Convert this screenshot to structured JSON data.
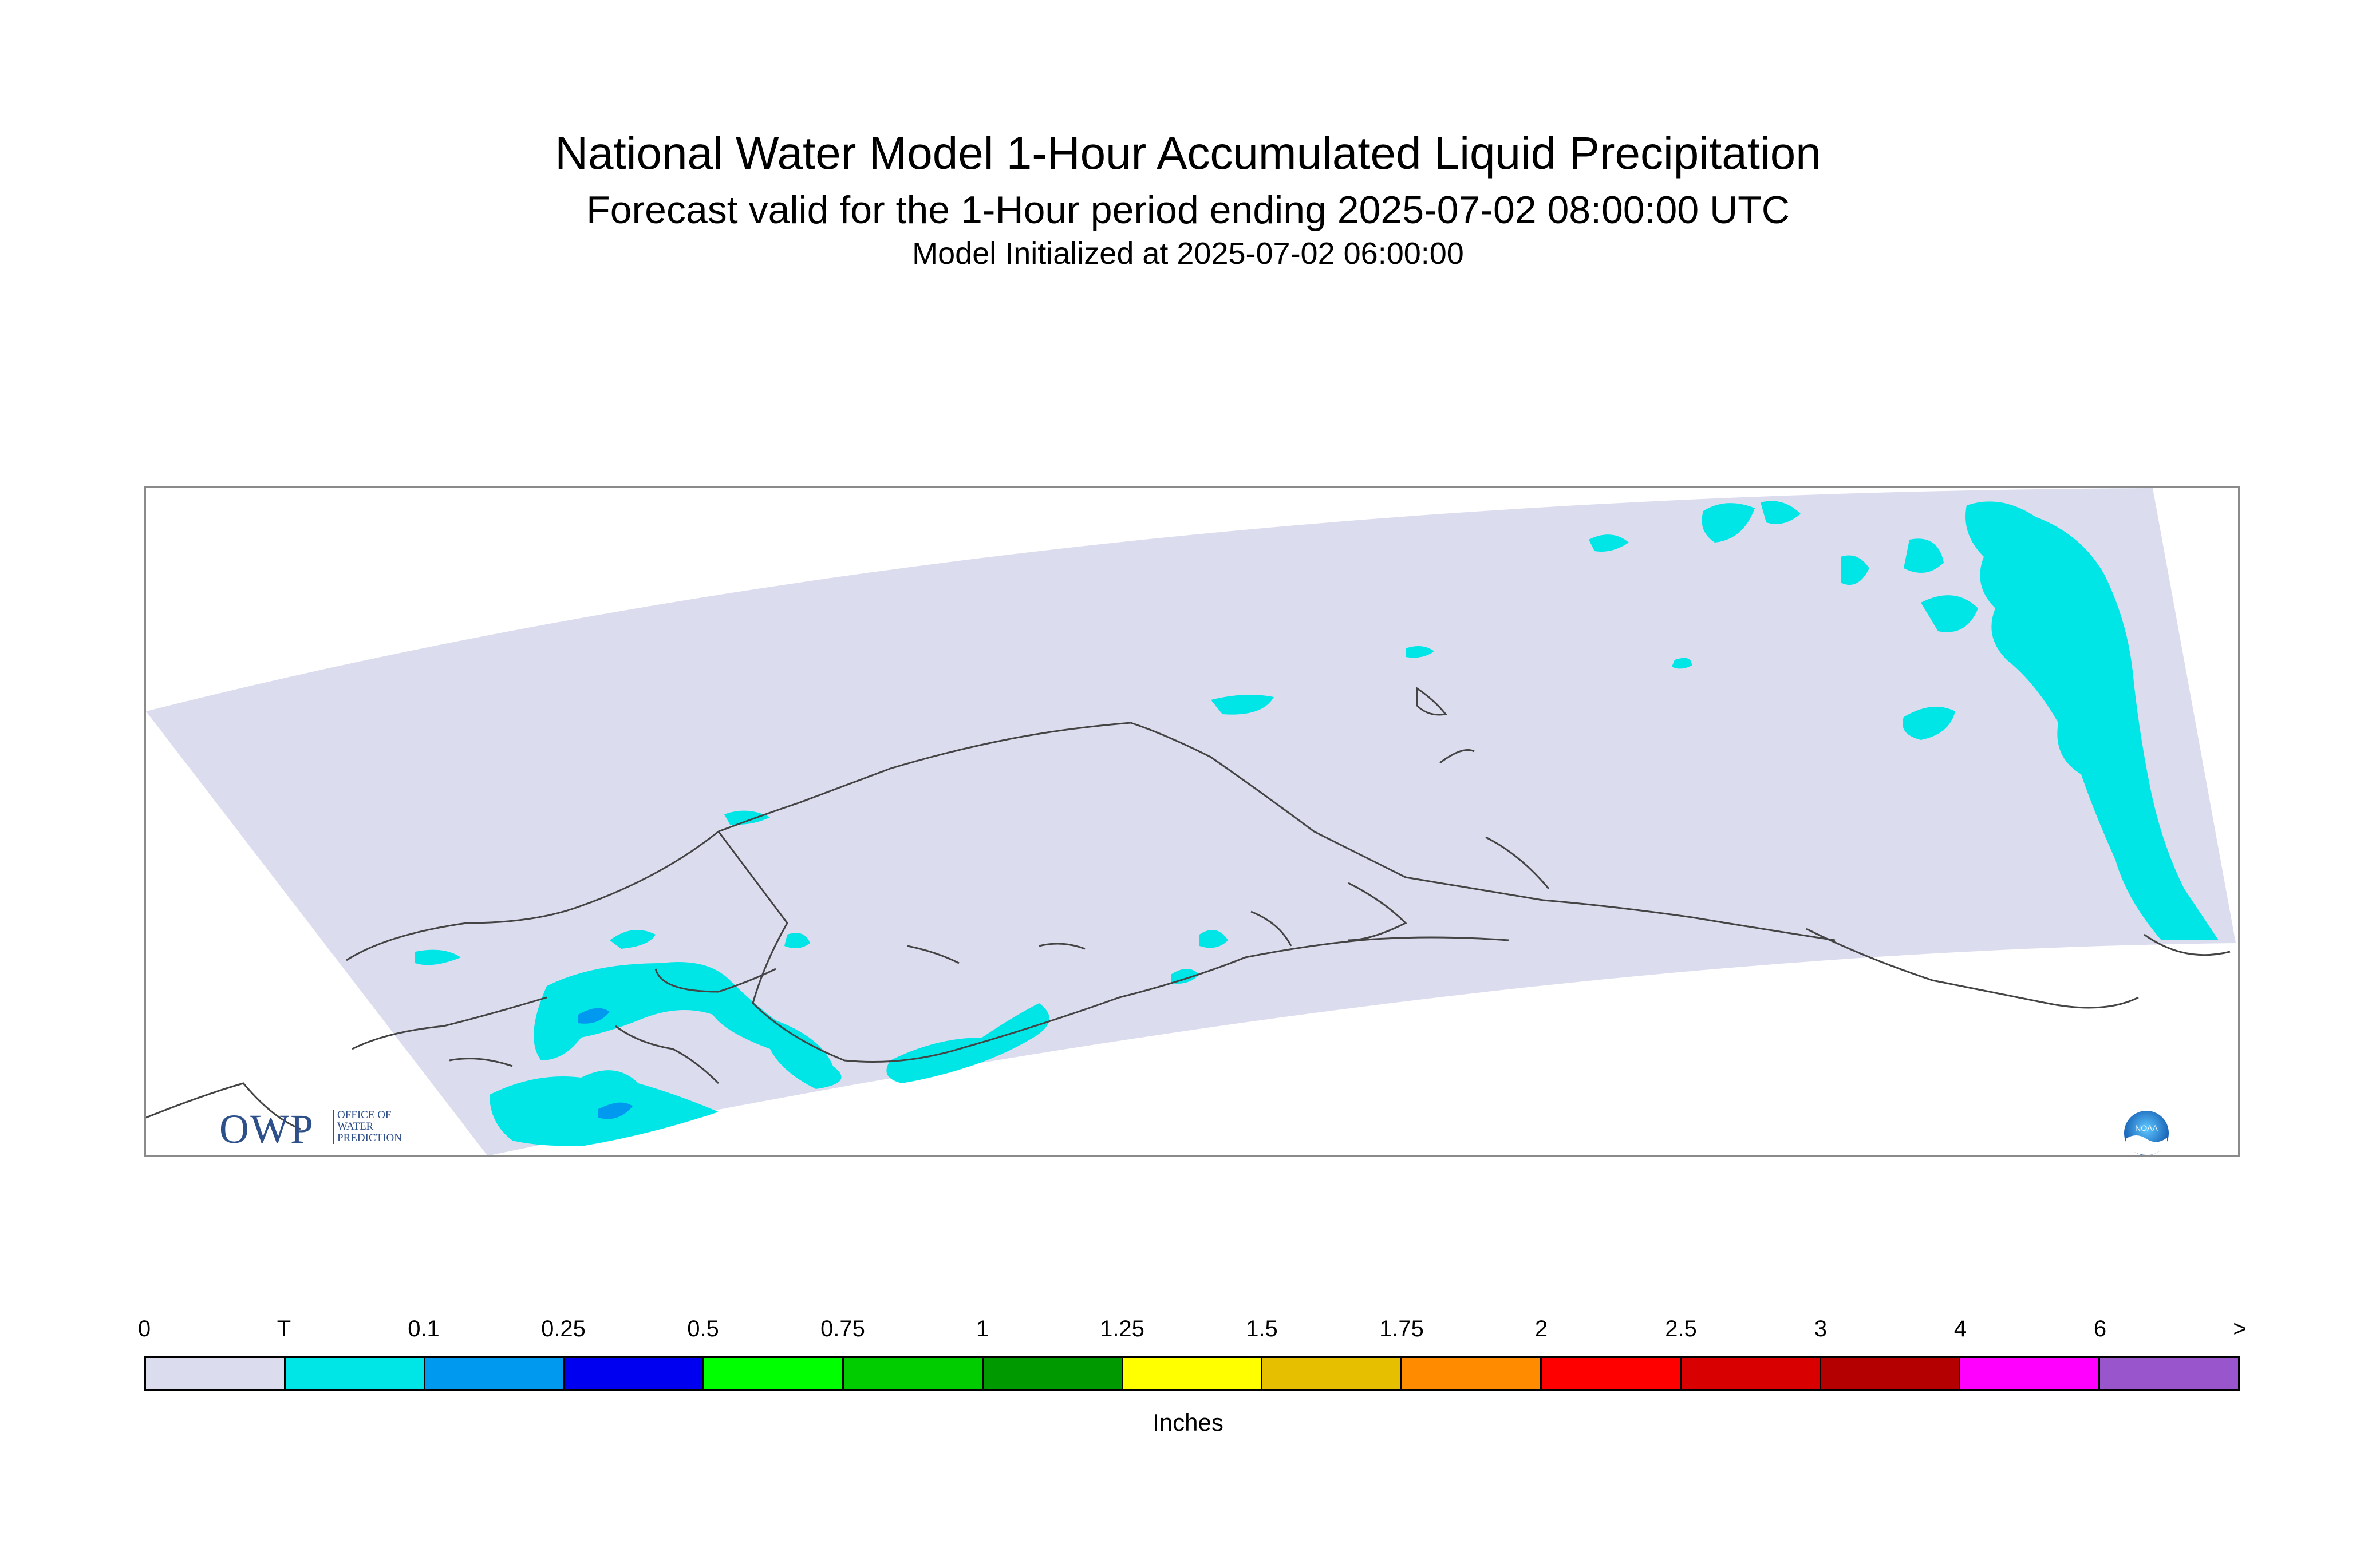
{
  "title": {
    "main": "National Water Model 1-Hour Accumulated Liquid Precipitation",
    "forecast": "Forecast valid for the 1-Hour period ending 2025-07-02 08:00:00 UTC",
    "initialized": "Model Initialized at 2025-07-02 06:00:00"
  },
  "logos": {
    "owp": {
      "text": "OWP",
      "subtitle": "OFFICE OF WATER PREDICTION"
    },
    "noaa": {
      "text": "NOAA",
      "icon": "noaa-icon"
    }
  },
  "map": {
    "region": "Alaska",
    "domain_color": "#dcdcef",
    "coastline_color": "#444444",
    "background_color": "#ffffff"
  },
  "legend": {
    "units": "Inches",
    "labels": [
      "0",
      "T",
      "0.1",
      "0.25",
      "0.5",
      "0.75",
      "1",
      "1.25",
      "1.5",
      "1.75",
      "2",
      "2.5",
      "3",
      "4",
      "6",
      ">"
    ],
    "colors": [
      "#dcdcef",
      "#00e6e6",
      "#0099f0",
      "#0000f0",
      "#00ff00",
      "#00cc00",
      "#009900",
      "#ffff00",
      "#e6c000",
      "#ff8c00",
      "#ff0000",
      "#d80000",
      "#b40000",
      "#ff00ff",
      "#9955cc"
    ]
  }
}
